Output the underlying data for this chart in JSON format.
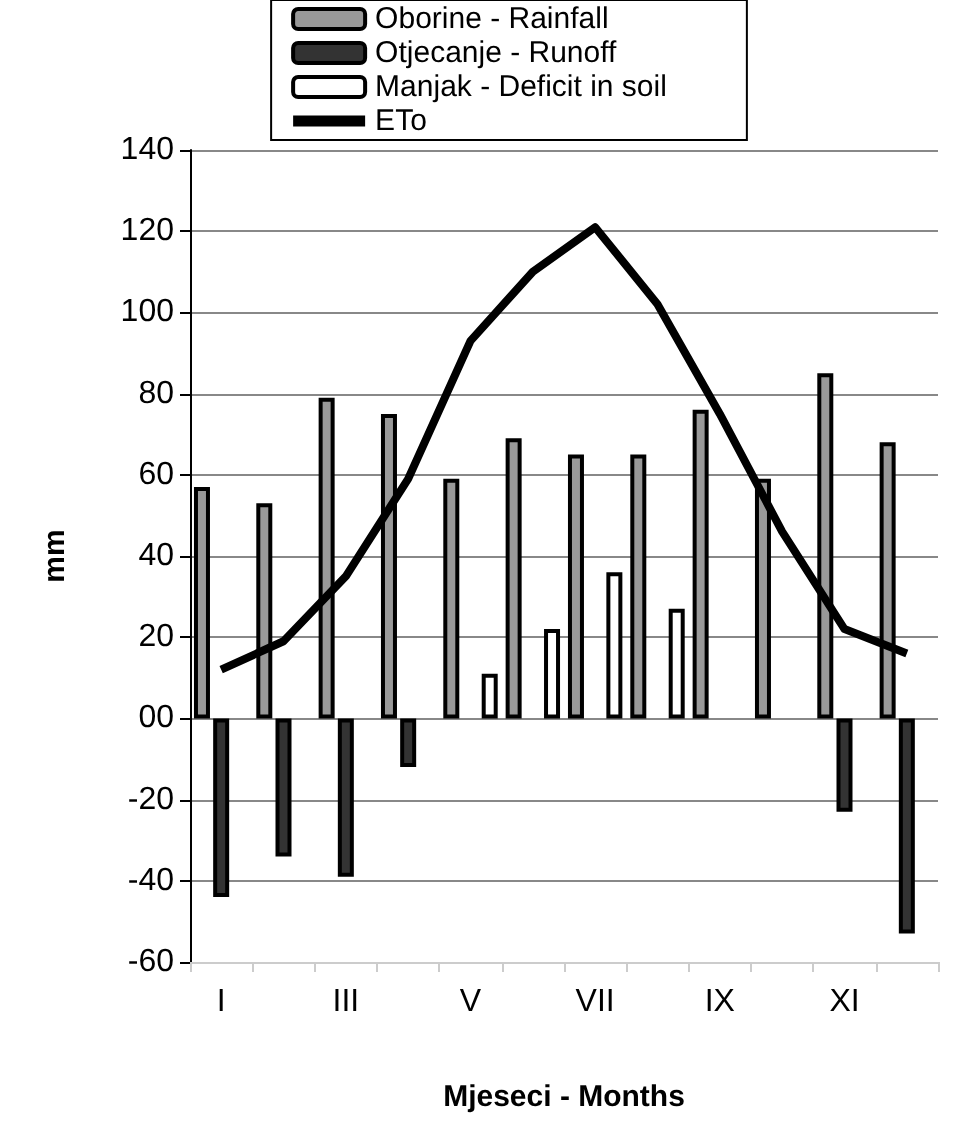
{
  "chart_data": {
    "type": "bar",
    "xlabel": "Mjeseci - Months",
    "ylabel": "mm",
    "categories": [
      "I",
      null,
      "III",
      null,
      "V",
      null,
      "VII",
      null,
      "IX",
      null,
      "XI",
      null
    ],
    "series": [
      {
        "name": "Oborine - Rainfall",
        "color": "#999999",
        "values": [
          57,
          53,
          79,
          75,
          59,
          69,
          65,
          65,
          76,
          59,
          85,
          68
        ]
      },
      {
        "name": "Otjecanje - Runoff",
        "color": "#333333",
        "values": [
          -44,
          -34,
          -39,
          -12,
          null,
          null,
          null,
          null,
          null,
          null,
          -23,
          -53
        ]
      },
      {
        "name": "Manjak - Deficit in soil",
        "color": "#ffffff",
        "values": [
          null,
          null,
          null,
          null,
          11,
          22,
          36,
          27,
          null,
          null,
          null,
          null
        ]
      },
      {
        "name": "ETo",
        "type": "line",
        "color": "#000000",
        "values": [
          12,
          19,
          35,
          59,
          93,
          110,
          121,
          102,
          75,
          46,
          22,
          16
        ]
      }
    ],
    "ylim": [
      -60,
      140
    ],
    "yticks": [
      -60,
      -40,
      -20,
      {
        "value": 0,
        "label": "00"
      },
      20,
      40,
      60,
      80,
      100,
      120,
      140
    ],
    "grid": "y",
    "legend": "top",
    "marker": "none"
  }
}
